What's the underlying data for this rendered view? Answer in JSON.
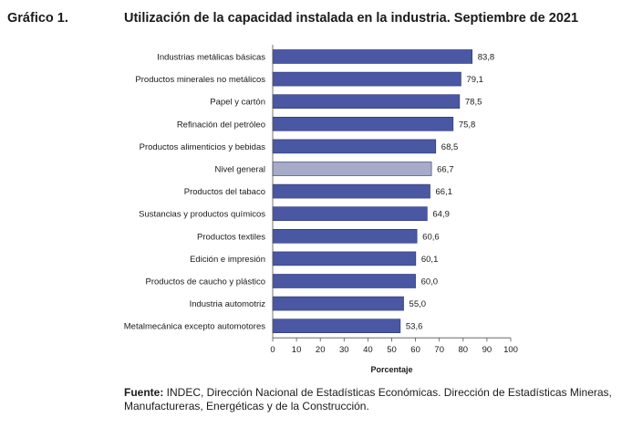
{
  "header": {
    "figure_label": "Gráfico 1.",
    "title": "Utilización de la capacidad instalada en la industria. Septiembre de 2021"
  },
  "chart_data": {
    "type": "bar",
    "orientation": "horizontal",
    "categories": [
      "Industrias metálicas básicas",
      "Productos minerales no metálicos",
      "Papel y cartón",
      "Refinación del petróleo",
      "Productos alimenticios y bebidas",
      "Nivel general",
      "Productos del tabaco",
      "Sustancias y productos químicos",
      "Productos textiles",
      "Edición e impresión",
      "Productos de caucho y plástico",
      "Industria automotriz",
      "Metalmecánica excepto automotores"
    ],
    "values": [
      83.8,
      79.1,
      78.5,
      75.8,
      68.5,
      66.7,
      66.1,
      64.9,
      60.6,
      60.1,
      60.0,
      55.0,
      53.6
    ],
    "value_labels": [
      "83,8",
      "79,1",
      "78,5",
      "75,8",
      "68,5",
      "66,7",
      "66,1",
      "64,9",
      "60,6",
      "60,1",
      "60,0",
      "55,0",
      "53,6"
    ],
    "highlight_category": "Nivel general",
    "xlabel": "Porcentaje",
    "ylabel": "",
    "xlim": [
      0,
      100
    ],
    "xticks": [
      0,
      10,
      20,
      30,
      40,
      50,
      60,
      70,
      80,
      90,
      100
    ],
    "grid": false,
    "legend": "none",
    "colors": {
      "bar": "#4a57a3",
      "highlight": "#a7abc9",
      "border": "#2b3275"
    }
  },
  "footer": {
    "source_label": "Fuente:",
    "source_text": " INDEC, Dirección Nacional de Estadísticas Económicas. Dirección de Estadísticas Mineras, Manufactureras, Energéticas y de la Construcción."
  }
}
